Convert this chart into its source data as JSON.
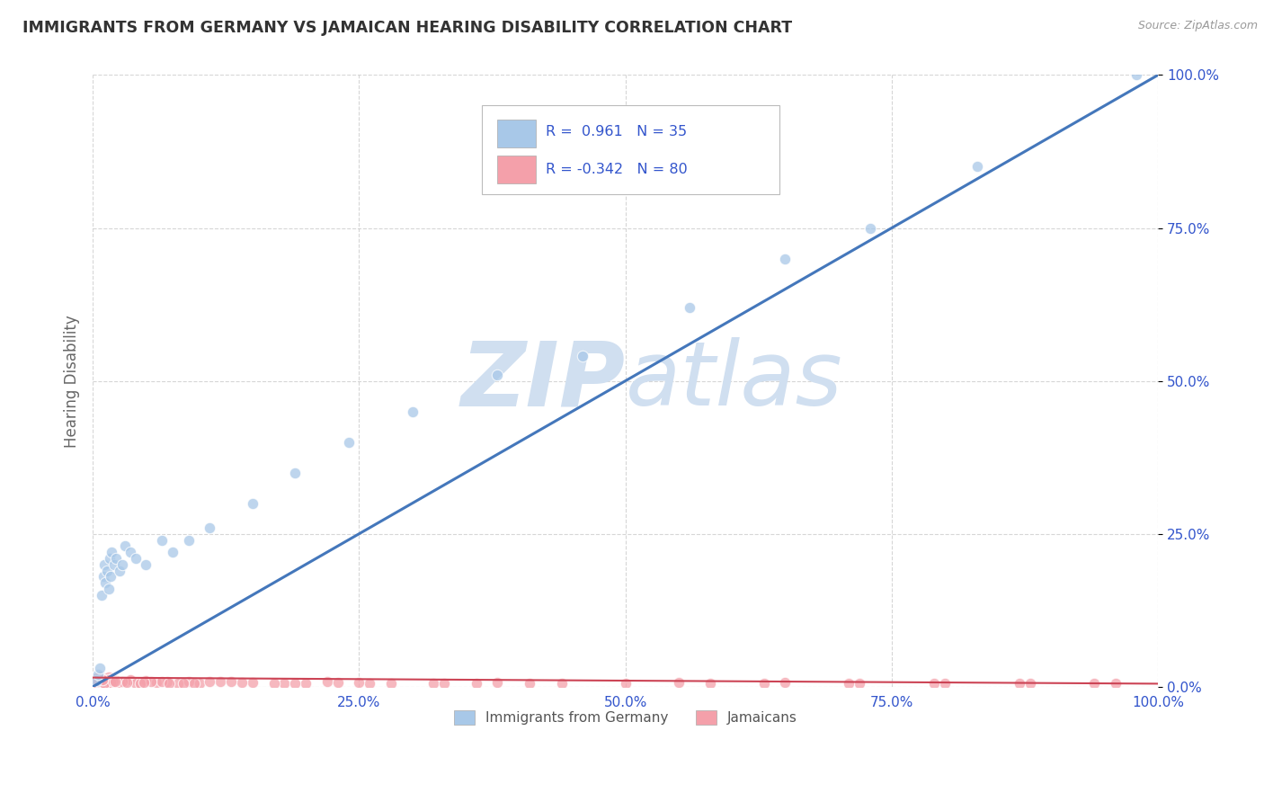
{
  "title": "IMMIGRANTS FROM GERMANY VS JAMAICAN HEARING DISABILITY CORRELATION CHART",
  "source_text": "Source: ZipAtlas.com",
  "ylabel": "Hearing Disability",
  "xlim": [
    0,
    100
  ],
  "ylim": [
    0,
    100
  ],
  "xtick_labels": [
    "0.0%",
    "25.0%",
    "50.0%",
    "75.0%",
    "100.0%"
  ],
  "xtick_vals": [
    0,
    25,
    50,
    75,
    100
  ],
  "ytick_labels": [
    "0.0%",
    "25.0%",
    "50.0%",
    "75.0%",
    "100.0%"
  ],
  "ytick_vals": [
    0,
    25,
    50,
    75,
    100
  ],
  "blue_R": "0.961",
  "blue_N": "35",
  "pink_R": "-0.342",
  "pink_N": "80",
  "blue_color": "#a8c8e8",
  "pink_color": "#f4a0aa",
  "blue_line_color": "#4477bb",
  "pink_line_color": "#cc4455",
  "blue_scatter_x": [
    0.3,
    0.5,
    0.7,
    0.8,
    1.0,
    1.1,
    1.2,
    1.3,
    1.5,
    1.6,
    1.7,
    1.8,
    2.0,
    2.2,
    2.5,
    2.8,
    3.0,
    3.5,
    4.0,
    5.0,
    6.5,
    7.5,
    9.0,
    11.0,
    15.0,
    19.0,
    24.0,
    30.0,
    38.0,
    46.0,
    56.0,
    65.0,
    73.0,
    83.0,
    98.0
  ],
  "blue_scatter_y": [
    1.0,
    2.0,
    3.0,
    15.0,
    18.0,
    20.0,
    17.0,
    19.0,
    16.0,
    21.0,
    18.0,
    22.0,
    20.0,
    21.0,
    19.0,
    20.0,
    23.0,
    22.0,
    21.0,
    20.0,
    24.0,
    22.0,
    24.0,
    26.0,
    30.0,
    35.0,
    40.0,
    45.0,
    51.0,
    54.0,
    62.0,
    70.0,
    75.0,
    85.0,
    100.0
  ],
  "pink_scatter_x": [
    0.2,
    0.3,
    0.4,
    0.5,
    0.6,
    0.7,
    0.8,
    0.9,
    1.0,
    1.1,
    1.2,
    1.3,
    1.5,
    1.6,
    1.8,
    2.0,
    2.2,
    2.5,
    3.0,
    3.5,
    4.0,
    5.0,
    6.0,
    7.0,
    8.0,
    9.0,
    10.0,
    12.0,
    15.0,
    18.0,
    22.0,
    26.0,
    32.0,
    38.0,
    44.0,
    50.0,
    58.0,
    65.0,
    72.0,
    80.0,
    88.0,
    96.0,
    0.4,
    0.6,
    1.4,
    1.7,
    2.8,
    4.5,
    6.5,
    9.5,
    14.0,
    20.0,
    28.0,
    36.0,
    0.3,
    0.5,
    0.8,
    1.1,
    1.9,
    3.2,
    5.5,
    8.5,
    13.0,
    19.0,
    25.0,
    33.0,
    41.0,
    55.0,
    63.0,
    71.0,
    79.0,
    87.0,
    94.0,
    0.9,
    2.1,
    4.8,
    7.2,
    11.0,
    17.0,
    23.0
  ],
  "pink_scatter_y": [
    0.8,
    1.5,
    0.6,
    1.2,
    0.9,
    1.8,
    1.0,
    0.7,
    1.4,
    0.5,
    1.1,
    0.8,
    1.6,
    0.6,
    1.3,
    0.9,
    1.0,
    0.7,
    0.8,
    1.2,
    0.6,
    1.0,
    0.7,
    0.9,
    0.5,
    0.8,
    0.6,
    0.9,
    0.7,
    0.5,
    0.8,
    0.6,
    0.5,
    0.7,
    0.5,
    0.6,
    0.5,
    0.7,
    0.5,
    0.6,
    0.5,
    0.6,
    1.5,
    0.8,
    1.2,
    0.7,
    0.9,
    0.6,
    0.8,
    0.5,
    0.7,
    0.6,
    0.5,
    0.6,
    1.0,
    0.9,
    1.3,
    0.6,
    0.8,
    0.7,
    0.9,
    0.6,
    0.8,
    0.5,
    0.7,
    0.6,
    0.5,
    0.7,
    0.5,
    0.6,
    0.5,
    0.6,
    0.5,
    1.1,
    0.8,
    0.7,
    0.6,
    0.8,
    0.5,
    0.7
  ],
  "watermark_zip": "ZIP",
  "watermark_atlas": "atlas",
  "watermark_color": "#d0dff0",
  "legend_label_blue": "Immigrants from Germany",
  "legend_label_pink": "Jamaicans",
  "background_color": "#ffffff",
  "grid_color": "#cccccc",
  "title_color": "#333333",
  "axis_label_color": "#666666",
  "tick_color": "#3355cc",
  "figsize": [
    14.06,
    8.92
  ],
  "dpi": 100
}
